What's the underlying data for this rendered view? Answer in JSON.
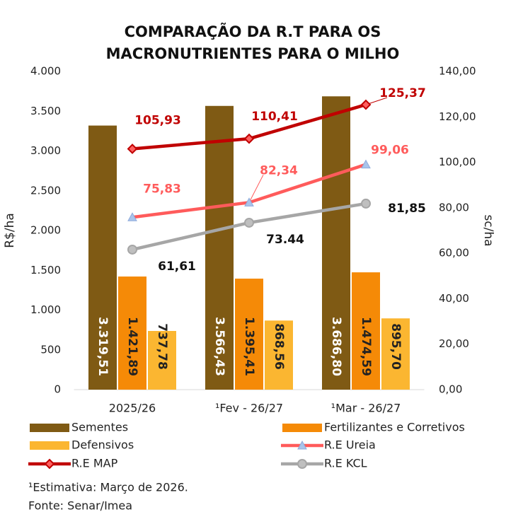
{
  "chart_data": {
    "type": "bar",
    "title": [
      "COMPARAÇÃO DA R.T PARA OS",
      "MACRONUTRIENTES PARA O MILHO"
    ],
    "ylabel": "R$/ha",
    "y2label": "sc/ha",
    "categories": [
      "2025/26",
      "¹Fev - 26/27",
      "¹Mar - 26/27"
    ],
    "ylim": [
      0,
      4000
    ],
    "yticks": [
      0,
      500,
      {
        "value": 1000,
        "label": "1.000"
      },
      {
        "value": 1500,
        "label": "1.500"
      },
      {
        "value": 2000,
        "label": "2.000"
      },
      {
        "value": 2500,
        "label": "2.500"
      },
      {
        "value": 3000,
        "label": "3.000"
      },
      {
        "value": 3500,
        "label": "3.500"
      },
      {
        "value": 4000,
        "label": "4.000"
      }
    ],
    "y2lim": [
      0,
      140
    ],
    "y2ticks": [
      {
        "value": 0,
        "label": "0,00"
      },
      {
        "value": 20,
        "label": "20,00"
      },
      {
        "value": 40,
        "label": "40,00"
      },
      {
        "value": 60,
        "label": "60,00"
      },
      {
        "value": 80,
        "label": "80,00"
      },
      {
        "value": 100,
        "label": "100,00"
      },
      {
        "value": 120,
        "label": "120,00"
      },
      {
        "value": 140,
        "label": "140,00"
      }
    ],
    "series": [
      {
        "name": "Sementes",
        "type": "bar",
        "color": "#7f5a14",
        "values": [
          3319.51,
          3566.43,
          3686.8
        ],
        "value_labels": [
          "3.319,51",
          "3.566,43",
          "3.686,80"
        ]
      },
      {
        "name": "Fertilizantes e Corretivos",
        "type": "bar",
        "color": "#f58a07",
        "values": [
          1421.89,
          1395.41,
          1474.59
        ],
        "value_labels": [
          "1.421,89",
          "1.395,41",
          "1.474,59"
        ]
      },
      {
        "name": "Defensivos",
        "type": "bar",
        "color": "#fbb631",
        "values": [
          737.78,
          868.56,
          895.7
        ],
        "value_labels": [
          "737,78",
          "868,56",
          "895,70"
        ]
      },
      {
        "name": "R.E Ureia",
        "type": "line",
        "axis": "y2",
        "color": "#ff5b5b",
        "values": [
          75.83,
          82.34,
          99.06
        ],
        "value_labels": [
          "75,83",
          "82,34",
          "99,06"
        ]
      },
      {
        "name": "R.E MAP",
        "type": "line",
        "axis": "y2",
        "color": "#c00000",
        "values": [
          105.93,
          110.41,
          125.37
        ],
        "value_labels": [
          "105,93",
          "110,41",
          "125,37"
        ]
      },
      {
        "name": "R.E KCL",
        "type": "line",
        "axis": "y2",
        "color": "#a6a6a6",
        "values": [
          61.61,
          73.44,
          81.85
        ],
        "value_labels": [
          "61,61",
          "73.44",
          "81,85"
        ]
      }
    ],
    "notes": [
      "¹Estimativa: Março de 2026.",
      "Fonte: Senar/Imea"
    ]
  }
}
